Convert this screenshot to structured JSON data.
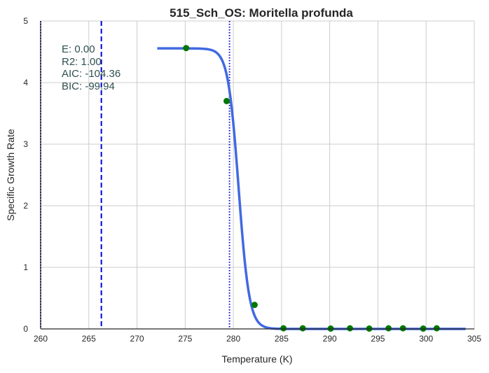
{
  "chart_data": {
    "type": "scatter",
    "title": "515_Sch_OS: Moritella profunda",
    "xlabel": "Temperature (K)",
    "ylabel": "Specific Growth Rate",
    "xlim": [
      260,
      305
    ],
    "ylim": [
      0,
      5
    ],
    "xticks": [
      260,
      265,
      270,
      275,
      280,
      285,
      290,
      295,
      300,
      305
    ],
    "yticks": [
      0,
      1,
      2,
      3,
      4,
      5
    ],
    "grid": true,
    "annotations": [
      "E:  0.00",
      "R2:  1.00",
      "AIC: -104.36",
      "BIC: -99.94"
    ],
    "vlines": [
      {
        "x": 260.0,
        "style": "dotted",
        "color": "#0000cc"
      },
      {
        "x": 266.3,
        "style": "dashed",
        "color": "#0000dd"
      },
      {
        "x": 279.6,
        "style": "dotted",
        "color": "#0000cc"
      }
    ],
    "fit_curve": {
      "color": "#4169e1",
      "x_range": [
        272.1,
        304.1
      ],
      "form": "sigmoid",
      "plateau": 4.555,
      "midpoint": 280.55,
      "width": 0.55
    },
    "points": {
      "color": "#007700",
      "x": [
        275.1,
        279.3,
        282.2,
        285.2,
        287.2,
        290.1,
        292.1,
        294.1,
        296.1,
        297.6,
        299.7,
        301.1
      ],
      "y": [
        4.56,
        3.7,
        0.39,
        0.01,
        0.01,
        0.005,
        0.01,
        0.005,
        0.01,
        0.01,
        0.005,
        0.01
      ]
    }
  }
}
